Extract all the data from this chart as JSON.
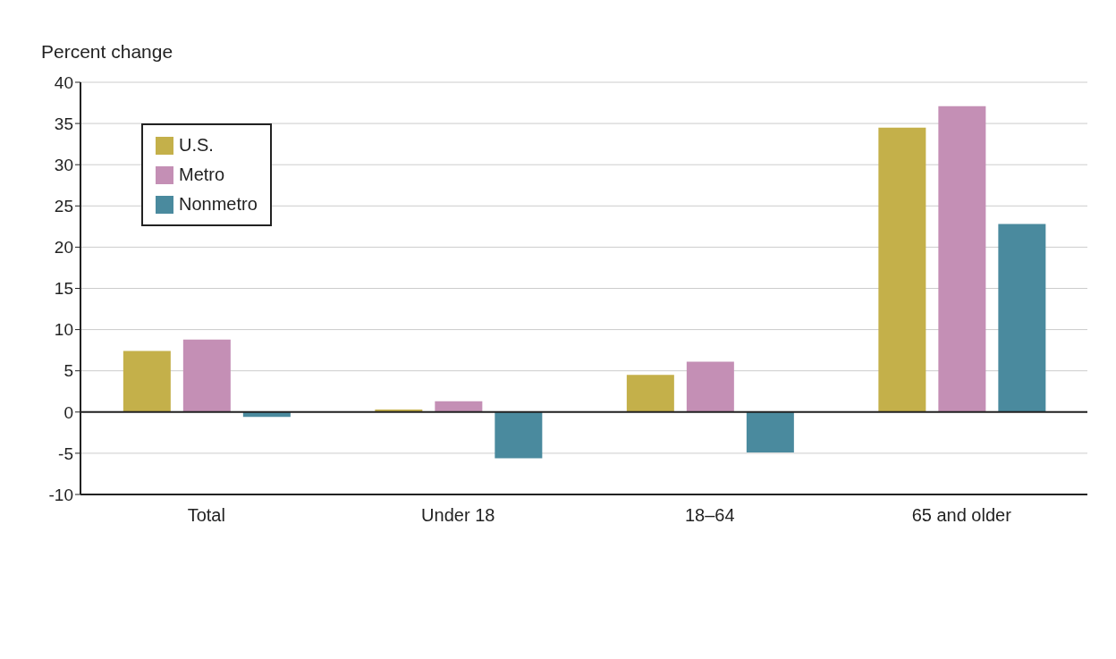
{
  "chart_data": {
    "type": "bar",
    "ylabel": "Percent change",
    "categories": [
      "Total",
      "Under 18",
      "18–64",
      "65 and older"
    ],
    "series": [
      {
        "name": "U.S.",
        "color": "#c4b04a",
        "values": [
          7.4,
          0.3,
          4.5,
          34.5
        ]
      },
      {
        "name": "Metro",
        "color": "#c48fb5",
        "values": [
          8.8,
          1.3,
          6.1,
          37.1
        ]
      },
      {
        "name": "Nonmetro",
        "color": "#4a8a9e",
        "values": [
          -0.6,
          -5.6,
          -4.9,
          22.8
        ]
      }
    ],
    "ylim": [
      -10,
      40
    ],
    "yticks": [
      -10,
      -5,
      0,
      5,
      10,
      15,
      20,
      25,
      30,
      35,
      40
    ],
    "grid": "y",
    "legend": "top left"
  }
}
